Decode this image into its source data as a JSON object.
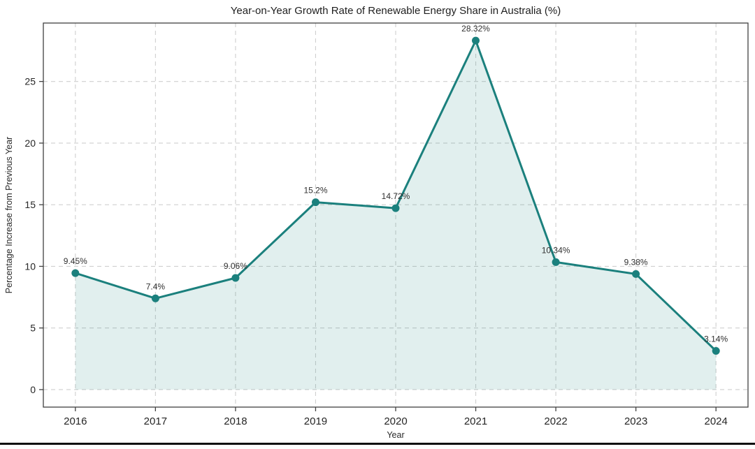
{
  "chart_data": {
    "type": "line",
    "title": "Year-on-Year Growth Rate of Renewable Energy Share in Australia (%)",
    "xlabel": "Year",
    "ylabel": "Percentage Increase from Previous Year",
    "categories": [
      "2016",
      "2017",
      "2018",
      "2019",
      "2020",
      "2021",
      "2022",
      "2023",
      "2024"
    ],
    "x": [
      2016,
      2017,
      2018,
      2019,
      2020,
      2021,
      2022,
      2023,
      2024
    ],
    "values": [
      9.45,
      7.4,
      9.06,
      15.2,
      14.72,
      28.32,
      10.34,
      9.38,
      3.14
    ],
    "point_labels": [
      "9.45%",
      "7.4%",
      "9.06%",
      "15.2%",
      "14.72%",
      "28.32%",
      "10.34%",
      "9.38%",
      "3.14%"
    ],
    "yticks": [
      0,
      5,
      10,
      15,
      20,
      25
    ],
    "xlim": [
      2015.6,
      2024.4
    ],
    "ylim": [
      -1.42,
      29.74
    ],
    "grid": true,
    "grid_style": "dashed",
    "area_fill": true,
    "area_baseline": 0,
    "legend": "none",
    "colors": {
      "line": "#1b807d",
      "marker": "#1b807d",
      "fill": "#1b807d",
      "fill_opacity": 0.13,
      "grid": "#cfcfcf",
      "frame": "#404040",
      "tick_text": "#262626",
      "title_text": "#1f1f1f"
    }
  },
  "page": {
    "background": "#ffffff",
    "bottom_rule_color": "#101010"
  }
}
